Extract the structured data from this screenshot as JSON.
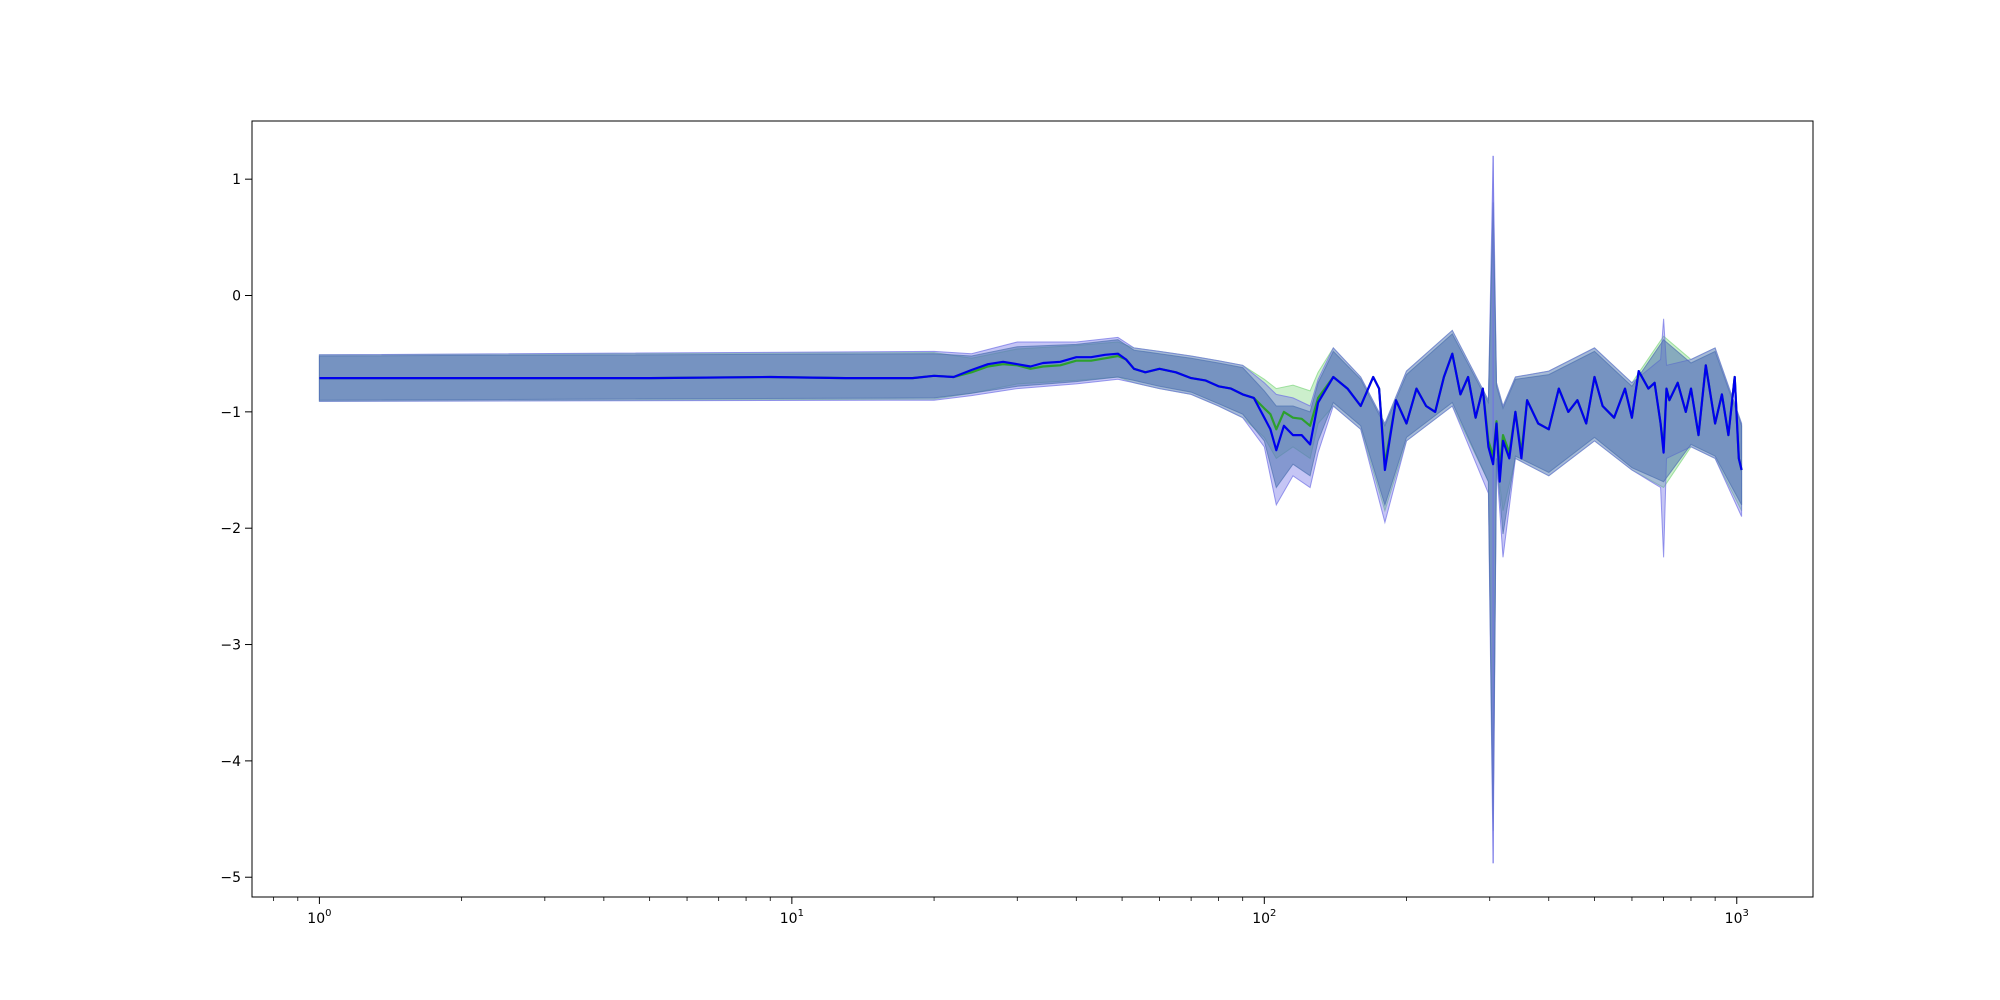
{
  "chart_data": {
    "type": "line",
    "title": "",
    "xlabel": "",
    "ylabel": "",
    "x_scale": "log",
    "xlim": [
      0.72,
      1450
    ],
    "ylim": [
      -5.17,
      1.5
    ],
    "grid": false,
    "legend": "none",
    "x_tick_labels": [
      {
        "value": 1,
        "base": "10",
        "exp": "0"
      },
      {
        "value": 10,
        "base": "10",
        "exp": "1"
      },
      {
        "value": 100,
        "base": "10",
        "exp": "2"
      },
      {
        "value": 1000,
        "base": "10",
        "exp": "3"
      }
    ],
    "y_ticks": [
      1,
      0,
      -1,
      -2,
      -3,
      -4,
      -5
    ],
    "y_tick_labels": [
      "1",
      "0",
      "−1",
      "−2",
      "−3",
      "−4",
      "−5"
    ],
    "colors": {
      "band_steel": "#4e72b0",
      "band_blue": "#6f6fe6",
      "band_green": "#7fd67f",
      "line_green": "#2ca02c",
      "line_blue": "#0000ee"
    },
    "series": [
      {
        "role": "mean",
        "color": "#0000ee",
        "x": [
          1,
          2,
          5,
          9,
          13,
          16,
          18,
          20,
          22,
          24,
          26,
          28,
          30,
          32,
          34,
          37,
          40,
          43,
          46,
          49,
          51,
          53,
          56,
          60,
          65,
          70,
          75,
          80,
          85,
          90,
          95,
          100,
          103,
          106,
          110,
          115,
          120,
          125,
          130,
          140,
          150,
          160,
          170,
          175,
          180,
          190,
          200,
          210,
          220,
          230,
          240,
          250,
          260,
          270,
          280,
          290,
          298,
          305,
          310,
          315,
          320,
          330,
          340,
          350,
          360,
          380,
          400,
          420,
          440,
          460,
          480,
          500,
          520,
          550,
          580,
          600,
          620,
          650,
          670,
          690,
          700,
          710,
          720,
          750,
          780,
          800,
          830,
          860,
          900,
          930,
          960,
          990,
          1010,
          1024
        ],
        "y": [
          -0.71,
          -0.71,
          -0.71,
          -0.7,
          -0.71,
          -0.71,
          -0.71,
          -0.69,
          -0.7,
          -0.64,
          -0.59,
          -0.57,
          -0.59,
          -0.61,
          -0.58,
          -0.57,
          -0.53,
          -0.53,
          -0.51,
          -0.5,
          -0.55,
          -0.63,
          -0.66,
          -0.63,
          -0.66,
          -0.71,
          -0.73,
          -0.78,
          -0.8,
          -0.85,
          -0.88,
          -1.05,
          -1.15,
          -1.33,
          -1.12,
          -1.2,
          -1.2,
          -1.28,
          -0.92,
          -0.7,
          -0.8,
          -0.95,
          -0.7,
          -0.8,
          -1.5,
          -0.9,
          -1.1,
          -0.8,
          -0.95,
          -1.0,
          -0.7,
          -0.5,
          -0.85,
          -0.7,
          -1.05,
          -0.8,
          -1.3,
          -1.45,
          -1.1,
          -1.6,
          -1.25,
          -1.4,
          -1.0,
          -1.4,
          -0.9,
          -1.1,
          -1.15,
          -0.8,
          -1.0,
          -0.9,
          -1.1,
          -0.7,
          -0.95,
          -1.05,
          -0.8,
          -1.05,
          -0.65,
          -0.8,
          -0.75,
          -1.1,
          -1.35,
          -0.8,
          -0.9,
          -0.75,
          -1.0,
          -0.8,
          -1.2,
          -0.6,
          -1.1,
          -0.85,
          -1.2,
          -0.7,
          -1.4,
          -1.5
        ]
      },
      {
        "role": "median",
        "color": "#2ca02c",
        "x": [
          1,
          2,
          5,
          9,
          13,
          16,
          18,
          20,
          22,
          24,
          26,
          28,
          30,
          32,
          34,
          37,
          40,
          43,
          46,
          49,
          51,
          53,
          56,
          60,
          65,
          70,
          75,
          80,
          85,
          90,
          95,
          100,
          103,
          106,
          110,
          115,
          120,
          125,
          130,
          140,
          150,
          160,
          170,
          175,
          180,
          190,
          200,
          210,
          220,
          230,
          240,
          250,
          260,
          270,
          280,
          290,
          298,
          305,
          310,
          315,
          320,
          330,
          340,
          350,
          360,
          380,
          400,
          420,
          440,
          460,
          480,
          500,
          520,
          550,
          580,
          600,
          620,
          650,
          670,
          690,
          700,
          710,
          720,
          750,
          780,
          800,
          830,
          860,
          900,
          930,
          960,
          990,
          1010,
          1024
        ],
        "y": [
          -0.71,
          -0.71,
          -0.71,
          -0.7,
          -0.71,
          -0.71,
          -0.71,
          -0.69,
          -0.7,
          -0.66,
          -0.61,
          -0.59,
          -0.6,
          -0.63,
          -0.61,
          -0.6,
          -0.56,
          -0.56,
          -0.54,
          -0.52,
          -0.55,
          -0.63,
          -0.66,
          -0.63,
          -0.66,
          -0.71,
          -0.73,
          -0.78,
          -0.8,
          -0.85,
          -0.88,
          -0.97,
          -1.02,
          -1.15,
          -1.0,
          -1.05,
          -1.06,
          -1.12,
          -0.88,
          -0.7,
          -0.8,
          -0.95,
          -0.7,
          -0.8,
          -1.45,
          -0.9,
          -1.1,
          -0.8,
          -0.95,
          -1.0,
          -0.7,
          -0.5,
          -0.85,
          -0.7,
          -1.05,
          -0.8,
          -1.25,
          -1.38,
          -1.08,
          -1.5,
          -1.2,
          -1.35,
          -1.0,
          -1.35,
          -0.9,
          -1.1,
          -1.15,
          -0.8,
          -1.0,
          -0.9,
          -1.1,
          -0.7,
          -0.95,
          -1.05,
          -0.8,
          -1.05,
          -0.65,
          -0.8,
          -0.75,
          -1.1,
          -1.3,
          -0.8,
          -0.9,
          -0.75,
          -1.0,
          -0.8,
          -1.2,
          -0.6,
          -1.1,
          -0.85,
          -1.2,
          -0.7,
          -1.4,
          -1.5
        ]
      }
    ],
    "bands": [
      {
        "color": "#7fd67f",
        "x": [
          1,
          20,
          24,
          30,
          40,
          49,
          53,
          60,
          70,
          80,
          90,
          100,
          106,
          115,
          125,
          130,
          140,
          160,
          180,
          200,
          250,
          298,
          305,
          310,
          320,
          340,
          400,
          500,
          600,
          700,
          800,
          900,
          1024
        ],
        "upper": [
          -0.51,
          -0.49,
          -0.54,
          -0.46,
          -0.43,
          -0.4,
          -0.45,
          -0.48,
          -0.52,
          -0.56,
          -0.6,
          -0.72,
          -0.8,
          -0.77,
          -0.82,
          -0.66,
          -0.45,
          -0.7,
          -1.1,
          -0.65,
          -0.3,
          -0.9,
          0.8,
          -0.75,
          -0.95,
          -0.7,
          -0.65,
          -0.45,
          -0.75,
          -0.35,
          -0.55,
          -0.45,
          -1.1
        ],
        "lower": [
          -0.91,
          -0.89,
          -0.84,
          -0.76,
          -0.73,
          -0.7,
          -0.75,
          -0.8,
          -0.85,
          -0.95,
          -1.05,
          -1.22,
          -1.4,
          -1.3,
          -1.4,
          -1.1,
          -0.95,
          -1.15,
          -1.85,
          -1.25,
          -0.95,
          -1.6,
          -4.6,
          -1.4,
          -1.85,
          -1.4,
          -1.55,
          -1.25,
          -1.5,
          -1.65,
          -1.3,
          -1.4,
          -1.85
        ]
      },
      {
        "color": "#6f6fe6",
        "x": [
          1,
          20,
          24,
          30,
          40,
          49,
          53,
          60,
          70,
          80,
          90,
          100,
          106,
          115,
          125,
          130,
          140,
          160,
          180,
          200,
          250,
          298,
          305,
          310,
          320,
          340,
          400,
          500,
          600,
          690,
          700,
          710,
          800,
          900,
          1024
        ],
        "upper": [
          -0.51,
          -0.48,
          -0.5,
          -0.4,
          -0.4,
          -0.36,
          -0.45,
          -0.48,
          -0.52,
          -0.56,
          -0.6,
          -0.75,
          -0.85,
          -0.88,
          -0.95,
          -0.72,
          -0.45,
          -0.7,
          -1.1,
          -0.65,
          -0.3,
          -0.9,
          1.2,
          -0.75,
          -0.95,
          -0.7,
          -0.65,
          -0.45,
          -0.75,
          -0.55,
          -0.2,
          -0.6,
          -0.55,
          -0.45,
          -1.1
        ],
        "lower": [
          -0.91,
          -0.9,
          -0.86,
          -0.8,
          -0.76,
          -0.72,
          -0.75,
          -0.8,
          -0.85,
          -0.95,
          -1.05,
          -1.3,
          -1.8,
          -1.55,
          -1.65,
          -1.35,
          -0.95,
          -1.15,
          -1.95,
          -1.25,
          -0.95,
          -1.7,
          -4.88,
          -1.45,
          -2.25,
          -1.4,
          -1.55,
          -1.25,
          -1.5,
          -1.65,
          -2.25,
          -1.4,
          -1.3,
          -1.4,
          -1.9
        ]
      },
      {
        "color": "#4e72b0",
        "x": [
          1,
          20,
          24,
          30,
          40,
          49,
          53,
          60,
          70,
          80,
          90,
          100,
          106,
          115,
          125,
          130,
          140,
          160,
          180,
          200,
          250,
          298,
          305,
          310,
          320,
          340,
          400,
          500,
          600,
          700,
          800,
          900,
          1024
        ],
        "upper": [
          -0.52,
          -0.5,
          -0.52,
          -0.44,
          -0.42,
          -0.38,
          -0.47,
          -0.5,
          -0.54,
          -0.58,
          -0.62,
          -0.82,
          -0.95,
          -0.95,
          -1.0,
          -0.75,
          -0.48,
          -0.72,
          -1.12,
          -0.68,
          -0.33,
          -0.92,
          0.8,
          -0.78,
          -0.97,
          -0.72,
          -0.68,
          -0.48,
          -0.78,
          -0.38,
          -0.58,
          -0.48,
          -1.12
        ],
        "lower": [
          -0.9,
          -0.88,
          -0.84,
          -0.78,
          -0.74,
          -0.7,
          -0.73,
          -0.78,
          -0.83,
          -0.93,
          -1.02,
          -1.25,
          -1.65,
          -1.45,
          -1.55,
          -1.25,
          -0.92,
          -1.12,
          -1.8,
          -1.22,
          -0.92,
          -1.6,
          -4.6,
          -1.4,
          -2.05,
          -1.38,
          -1.52,
          -1.22,
          -1.48,
          -1.6,
          -1.28,
          -1.38,
          -1.8
        ]
      }
    ],
    "spike": {
      "x": 305,
      "y_top": 1.2,
      "y_bottom": -4.88,
      "color": "#6f6fe6"
    }
  }
}
